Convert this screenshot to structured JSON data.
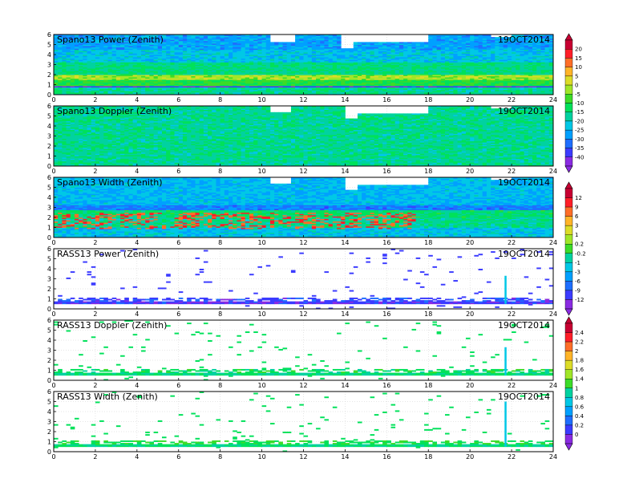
{
  "chart_data": [
    {
      "type": "heatmap",
      "title": "Spano13  Power  (Zenith)",
      "date": "19OCT2014",
      "xlim": [
        0,
        24
      ],
      "ylim": [
        0,
        6
      ],
      "xticks": [
        "0",
        "2",
        "4",
        "6",
        "8",
        "10",
        "12",
        "14",
        "16",
        "18",
        "20",
        "22",
        "24"
      ],
      "yticks": [
        "0",
        "1",
        "2",
        "3",
        "4",
        "5",
        "6"
      ],
      "layers": [
        {
          "y": [
            0.0,
            0.7
          ],
          "level": 0.4
        },
        {
          "y": [
            0.7,
            0.85
          ],
          "level": 0.05
        },
        {
          "y": [
            0.85,
            1.55
          ],
          "level": 0.5
        },
        {
          "y": [
            1.55,
            2.0
          ],
          "level": 0.62
        },
        {
          "y": [
            2.0,
            3.3
          ],
          "level": 0.42
        },
        {
          "y": [
            3.3,
            4.5
          ],
          "level": 0.3
        },
        {
          "y": [
            4.5,
            6.0
          ],
          "level": 0.24
        }
      ],
      "gaps": [
        {
          "x": [
            10.5,
            11.6
          ],
          "y": [
            5.3,
            6.0
          ]
        },
        {
          "x": [
            13.8,
            14.4
          ],
          "y": [
            4.6,
            6.0
          ]
        },
        {
          "x": [
            14.4,
            18.0
          ],
          "y": [
            5.2,
            6.0
          ]
        },
        {
          "x": [
            21.0,
            22.0
          ],
          "y": [
            5.7,
            6.0
          ]
        }
      ],
      "colorbar": 0
    },
    {
      "type": "heatmap",
      "title": "Spano13  Doppler  (Zenith)",
      "date": "19OCT2014",
      "xlim": [
        0,
        24
      ],
      "ylim": [
        0,
        6
      ],
      "xticks": [
        "0",
        "2",
        "4",
        "6",
        "8",
        "10",
        "12",
        "14",
        "16",
        "18",
        "20",
        "22",
        "24"
      ],
      "yticks": [
        "0",
        "1",
        "2",
        "3",
        "4",
        "5",
        "6"
      ],
      "layers": [
        {
          "y": [
            0.0,
            6.0
          ],
          "level": 0.4
        }
      ],
      "gaps": [
        {
          "x": [
            10.4,
            11.3
          ],
          "y": [
            5.4,
            6.0
          ]
        },
        {
          "x": [
            14.0,
            14.5
          ],
          "y": [
            4.8,
            6.0
          ]
        },
        {
          "x": [
            14.5,
            18.0
          ],
          "y": [
            5.2,
            6.0
          ]
        },
        {
          "x": [
            21.0,
            22.0
          ],
          "y": [
            5.7,
            6.0
          ]
        }
      ],
      "colorbar": 0
    },
    {
      "type": "heatmap",
      "title": "Spano13  Width  (Zenith)",
      "date": "19OCT2014",
      "xlim": [
        0,
        24
      ],
      "ylim": [
        0,
        6
      ],
      "xticks": [
        "0",
        "2",
        "4",
        "6",
        "8",
        "10",
        "12",
        "14",
        "16",
        "18",
        "20",
        "22",
        "24"
      ],
      "yticks": [
        "0",
        "1",
        "2",
        "3",
        "4",
        "5",
        "6"
      ],
      "layers": [
        {
          "y": [
            0.0,
            1.0
          ],
          "level": 0.3
        },
        {
          "y": [
            1.0,
            2.0
          ],
          "level": 0.4
        },
        {
          "y": [
            2.0,
            2.7
          ],
          "level": 0.44
        },
        {
          "y": [
            2.7,
            3.3
          ],
          "level": 0.18
        },
        {
          "y": [
            3.3,
            6.0
          ],
          "level": 0.28
        }
      ],
      "hot": {
        "y": [
          0.9,
          2.5
        ],
        "x": [
          0,
          17.5
        ],
        "level": 0.88
      },
      "gaps": [
        {
          "x": [
            10.4,
            11.3
          ],
          "y": [
            5.4,
            6.0
          ]
        },
        {
          "x": [
            14.0,
            14.5
          ],
          "y": [
            4.8,
            6.0
          ]
        },
        {
          "x": [
            14.5,
            18.0
          ],
          "y": [
            5.2,
            6.0
          ]
        },
        {
          "x": [
            21.0,
            22.0
          ],
          "y": [
            5.7,
            6.0
          ]
        }
      ],
      "colorbar": 1
    },
    {
      "type": "heatmap",
      "title": "RASS13  Power  (Zenith)",
      "date": "19OCT2014",
      "xlim": [
        0,
        24
      ],
      "ylim": [
        0,
        6
      ],
      "xticks": [
        "0",
        "2",
        "4",
        "6",
        "8",
        "10",
        "12",
        "14",
        "16",
        "18",
        "20",
        "22",
        "24"
      ],
      "yticks": [
        "0",
        "1",
        "2",
        "3",
        "4",
        "5",
        "6"
      ],
      "layers": [
        {
          "y": [
            0.45,
            0.75
          ],
          "level": 0.06
        },
        {
          "y": [
            0.75,
            1.15
          ],
          "level": 0.1,
          "sparse": 0.5
        }
      ],
      "spike": {
        "x": 21.7,
        "y": [
          0.5,
          3.3
        ]
      },
      "scatter_level": 0.08,
      "colorbar": 1
    },
    {
      "type": "heatmap",
      "title": "RASS13  Doppler  (Zenith)",
      "date": "19OCT2014",
      "xlim": [
        0,
        24
      ],
      "ylim": [
        0,
        6
      ],
      "xticks": [
        "0",
        "2",
        "4",
        "6",
        "8",
        "10",
        "12",
        "14",
        "16",
        "18",
        "20",
        "22",
        "24"
      ],
      "yticks": [
        "0",
        "1",
        "2",
        "3",
        "4",
        "5",
        "6"
      ],
      "layers": [
        {
          "y": [
            0.45,
            0.75
          ],
          "level": 0.42
        },
        {
          "y": [
            0.75,
            1.1
          ],
          "level": 0.46,
          "sparse": 0.5
        }
      ],
      "spike": {
        "x": 21.7,
        "y": [
          0.5,
          3.3
        ]
      },
      "scatter_level": 0.45,
      "colorbar": 2
    },
    {
      "type": "heatmap",
      "title": "RASS13  Width  (Zenith)",
      "date": "19OCT2014",
      "xlim": [
        0,
        24
      ],
      "ylim": [
        0,
        6
      ],
      "xticks": [
        "0",
        "2",
        "4",
        "6",
        "8",
        "10",
        "12",
        "14",
        "16",
        "18",
        "20",
        "22",
        "24"
      ],
      "yticks": [
        "0",
        "1",
        "2",
        "3",
        "4",
        "5",
        "6"
      ],
      "layers": [
        {
          "y": [
            0.45,
            0.75
          ],
          "level": 0.42
        },
        {
          "y": [
            0.75,
            1.1
          ],
          "level": 0.5,
          "sparse": 0.5
        }
      ],
      "spike": {
        "x": 21.7,
        "y": [
          0.5,
          5.0
        ]
      },
      "scatter_level": 0.45,
      "colorbar": 2
    }
  ],
  "colorbars": [
    {
      "labels": [
        "20",
        "15",
        "10",
        "5",
        "0",
        "-5",
        "-10",
        "-15",
        "-20",
        "-25",
        "-30",
        "-35",
        "-40"
      ]
    },
    {
      "labels": [
        "12",
        "9",
        "6",
        "3",
        "1",
        "0.2",
        "-0.2",
        "-1",
        "-3",
        "-6",
        "-9",
        "-12"
      ]
    },
    {
      "labels": [
        "2.4",
        "2.2",
        "2",
        "1.8",
        "1.6",
        "1.4",
        "1",
        "0.8",
        "0.6",
        "0.4",
        "0.2",
        "0"
      ]
    }
  ],
  "colors": {
    "scale": [
      "#8a2be2",
      "#3b3bff",
      "#1e6eff",
      "#00a0ff",
      "#00c8e6",
      "#00d2a0",
      "#00e15a",
      "#3cdc28",
      "#a0e628",
      "#dcdc28",
      "#ffb428",
      "#ff6e28",
      "#ff1e28",
      "#c80032"
    ]
  }
}
